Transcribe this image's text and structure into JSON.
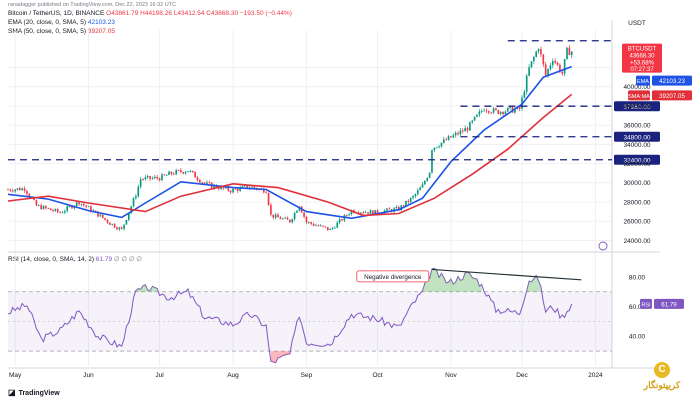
{
  "header": {
    "credit": "ranadagger published on TradingView.com, Dec 22, 2023 16:32 UTC",
    "symbol": "Bitcoin / TetherUS, 1D, BINANCE",
    "ohlc": "O43861.79 H44198.26 L43412.54 C43668.30 −193.50 (−0.44%)",
    "ema_label": "EMA (20, close, 0, SMA, 5)",
    "ema_value": "42103.23",
    "sma_label": "SMA (50, close, 0, SMA, 5)",
    "sma_value": "39207.05",
    "rsi_label": "RSI (14, close, 0, SMA, 14, 2)",
    "rsi_value_text": "61.79",
    "rsi_placeholders": "∅ ∅ ∅ ∅"
  },
  "footer": {
    "brand": "TradingView"
  },
  "watermark": {
    "text": "کریپتونگار",
    "logo_glyph": "C"
  },
  "colors": {
    "up": "#089981",
    "down": "#f23645",
    "ema": "#1e53e5",
    "sma": "#e0313a",
    "rsi": "#7e57c2",
    "support": "#1a237e",
    "grid": "#eef0f4"
  },
  "chart_data": [
    {
      "type": "candlestick",
      "symbol": "BTCUSDT",
      "x_tick_labels": [
        "May",
        "Jun",
        "Jul",
        "Aug",
        "Sep",
        "Oct",
        "Nov",
        "Dec",
        "2024"
      ],
      "x_tick_dates": [
        "2023-05-01",
        "2023-06-01",
        "2023-07-01",
        "2023-08-01",
        "2023-09-01",
        "2023-10-01",
        "2023-11-01",
        "2023-12-01",
        "2024-01-01"
      ],
      "x_range": [
        "2023-04-28",
        "2024-01-08"
      ],
      "y_ticks": [
        24000,
        26000,
        28000,
        30000,
        32000,
        34000,
        36000,
        38000,
        40000,
        42000
      ],
      "y_range": [
        23000,
        45500
      ],
      "price_label": "USDT",
      "candles_close_path": [
        [
          "2023-04-28",
          29300
        ],
        [
          "2023-05-05",
          29400
        ],
        [
          "2023-05-10",
          27600
        ],
        [
          "2023-05-20",
          26900
        ],
        [
          "2023-05-28",
          28000
        ],
        [
          "2023-06-05",
          26700
        ],
        [
          "2023-06-10",
          25800
        ],
        [
          "2023-06-15",
          25100
        ],
        [
          "2023-06-21",
          28800
        ],
        [
          "2023-06-23",
          30400
        ],
        [
          "2023-07-01",
          30500
        ],
        [
          "2023-07-06",
          31000
        ],
        [
          "2023-07-13",
          31300
        ],
        [
          "2023-07-20",
          29900
        ],
        [
          "2023-07-31",
          29200
        ],
        [
          "2023-08-08",
          29600
        ],
        [
          "2023-08-15",
          29200
        ],
        [
          "2023-08-17",
          26600
        ],
        [
          "2023-08-25",
          26000
        ],
        [
          "2023-08-29",
          27700
        ],
        [
          "2023-09-01",
          25900
        ],
        [
          "2023-09-11",
          25100
        ],
        [
          "2023-09-20",
          27100
        ],
        [
          "2023-09-30",
          26900
        ],
        [
          "2023-10-10",
          27300
        ],
        [
          "2023-10-16",
          28500
        ],
        [
          "2023-10-20",
          29700
        ],
        [
          "2023-10-23",
          31200
        ],
        [
          "2023-10-24",
          33600
        ],
        [
          "2023-10-31",
          34600
        ],
        [
          "2023-11-08",
          35700
        ],
        [
          "2023-11-15",
          37800
        ],
        [
          "2023-11-20",
          37400
        ],
        [
          "2023-11-30",
          37700
        ],
        [
          "2023-12-01",
          38700
        ],
        [
          "2023-12-04",
          41900
        ],
        [
          "2023-12-08",
          44200
        ],
        [
          "2023-12-11",
          41200
        ],
        [
          "2023-12-14",
          43000
        ],
        [
          "2023-12-18",
          41400
        ],
        [
          "2023-12-20",
          43700
        ],
        [
          "2023-12-22",
          43668
        ]
      ],
      "ema20_path": [
        [
          "2023-04-28",
          28800
        ],
        [
          "2023-05-15",
          28300
        ],
        [
          "2023-06-01",
          27100
        ],
        [
          "2023-06-15",
          26400
        ],
        [
          "2023-06-25",
          27900
        ],
        [
          "2023-07-10",
          30100
        ],
        [
          "2023-08-01",
          29500
        ],
        [
          "2023-08-15",
          29300
        ],
        [
          "2023-09-01",
          27000
        ],
        [
          "2023-09-20",
          26300
        ],
        [
          "2023-10-10",
          27200
        ],
        [
          "2023-10-20",
          28400
        ],
        [
          "2023-11-01",
          32200
        ],
        [
          "2023-11-15",
          35500
        ],
        [
          "2023-12-01",
          38200
        ],
        [
          "2023-12-10",
          41000
        ],
        [
          "2023-12-22",
          42103
        ]
      ],
      "sma50_path": [
        [
          "2023-04-28",
          28100
        ],
        [
          "2023-05-15",
          28600
        ],
        [
          "2023-06-01",
          27900
        ],
        [
          "2023-06-25",
          27000
        ],
        [
          "2023-07-10",
          28600
        ],
        [
          "2023-08-01",
          29900
        ],
        [
          "2023-08-20",
          29500
        ],
        [
          "2023-09-10",
          28000
        ],
        [
          "2023-09-25",
          26600
        ],
        [
          "2023-10-10",
          26800
        ],
        [
          "2023-10-25",
          28400
        ],
        [
          "2023-11-10",
          30900
        ],
        [
          "2023-11-25",
          33500
        ],
        [
          "2023-12-10",
          36800
        ],
        [
          "2023-12-22",
          39207
        ]
      ],
      "levels": [
        {
          "label": "32400.00",
          "value": 32400,
          "from": "2023-04-28"
        },
        {
          "label": "34800.00",
          "value": 34800,
          "from": "2023-11-05"
        },
        {
          "label": "37980.00",
          "value": 37980,
          "from": "2023-11-05"
        },
        {
          "value": 44800,
          "from": "2023-11-25"
        }
      ],
      "axis_tags": [
        {
          "label": "BTCUSDT",
          "value": 43668.3
        },
        {
          "label": "43668.30",
          "value": 43668.3
        },
        {
          "label": "+53.68%",
          "value": 43668.3
        },
        {
          "label": "07:27:37",
          "value": 43668.3
        },
        {
          "label": "EMA",
          "value": 42103.23
        },
        {
          "label": "42103.23",
          "value": 42103.23
        },
        {
          "label": "SMA:MA",
          "value": 39207.05
        },
        {
          "label": "39207.05",
          "value": 39207.05
        }
      ]
    },
    {
      "type": "line",
      "name": "RSI",
      "y_ticks": [
        40,
        60,
        80
      ],
      "y_range": [
        20,
        90
      ],
      "band": [
        30,
        70
      ],
      "rsi_path": [
        [
          "2023-04-28",
          56
        ],
        [
          "2023-05-06",
          61
        ],
        [
          "2023-05-12",
          38
        ],
        [
          "2023-05-20",
          44
        ],
        [
          "2023-05-28",
          57
        ],
        [
          "2023-06-05",
          40
        ],
        [
          "2023-06-15",
          33
        ],
        [
          "2023-06-21",
          70
        ],
        [
          "2023-06-26",
          73
        ],
        [
          "2023-07-05",
          66
        ],
        [
          "2023-07-13",
          70
        ],
        [
          "2023-07-20",
          53
        ],
        [
          "2023-08-01",
          48
        ],
        [
          "2023-08-08",
          55
        ],
        [
          "2023-08-15",
          47
        ],
        [
          "2023-08-17",
          22
        ],
        [
          "2023-08-25",
          28
        ],
        [
          "2023-08-29",
          55
        ],
        [
          "2023-09-01",
          36
        ],
        [
          "2023-09-11",
          35
        ],
        [
          "2023-09-20",
          55
        ],
        [
          "2023-09-30",
          52
        ],
        [
          "2023-10-10",
          46
        ],
        [
          "2023-10-16",
          62
        ],
        [
          "2023-10-20",
          70
        ],
        [
          "2023-10-24",
          85
        ],
        [
          "2023-10-31",
          76
        ],
        [
          "2023-11-08",
          82
        ],
        [
          "2023-11-12",
          78
        ],
        [
          "2023-11-15",
          72
        ],
        [
          "2023-11-20",
          58
        ],
        [
          "2023-11-30",
          56
        ],
        [
          "2023-12-04",
          78
        ],
        [
          "2023-12-08",
          79
        ],
        [
          "2023-12-11",
          57
        ],
        [
          "2023-12-14",
          60
        ],
        [
          "2023-12-18",
          53
        ],
        [
          "2023-12-22",
          61.79
        ]
      ],
      "divergence_line": {
        "start": [
          "2023-10-24",
          85
        ],
        "end": [
          "2023-12-26",
          78
        ]
      },
      "annotation": {
        "label": "Negative divergence",
        "date": "2023-10-10",
        "value": 80
      },
      "axis_tags": [
        {
          "label": "RSI",
          "value": 61.79
        },
        {
          "label": "61.79",
          "value": 61.79
        }
      ]
    }
  ]
}
